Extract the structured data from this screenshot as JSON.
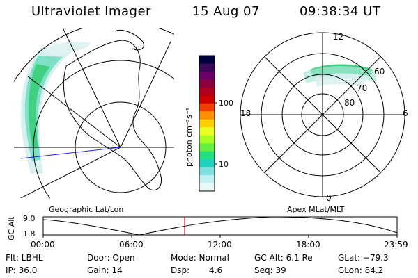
{
  "header": {
    "instrument": "Ultraviolet Imager",
    "date": "15 Aug 07",
    "time": "09:38:34 UT"
  },
  "geo_panel": {
    "label": "Geographic Lat/Lon"
  },
  "mlt_panel": {
    "label": "Apex MLat/MLT",
    "mlt_labels": [
      "12",
      "18",
      "6",
      "0"
    ],
    "lat_labels": [
      "60",
      "70",
      "80"
    ]
  },
  "colorbar": {
    "unit_label": "photon cm⁻²s⁻¹",
    "ticks": [
      "100",
      "10"
    ],
    "colors": [
      "#000040",
      "#3a0a5a",
      "#6a006a",
      "#8a0040",
      "#b00020",
      "#d00000",
      "#f04000",
      "#ff9000",
      "#ffd000",
      "#e8ff20",
      "#a8ff20",
      "#60f040",
      "#20e080",
      "#20d0c0",
      "#80e0e0",
      "#c0f0f0",
      "#e8f8f8"
    ]
  },
  "altitude_plot": {
    "ylabel": "GC Alt",
    "yticks": [
      "9.0",
      "1.8"
    ],
    "xticks": [
      "00:00",
      "06:00",
      "12:00",
      "18:00",
      "23:59"
    ],
    "current_time_marker": "09:38"
  },
  "info": {
    "flt": "Flt: LBHL",
    "door": "Door: Open",
    "mode": "Mode: Normal",
    "gc_alt": "GC Alt: 6.1 Re",
    "glat": "GLat: −79.3",
    "ip": "IP: 36.0",
    "gain": "Gain: 14",
    "dsp": "Dsp:",
    "dsp_val": "4.6",
    "seq": "Seq: 39",
    "glon": "GLon:  84.2"
  }
}
